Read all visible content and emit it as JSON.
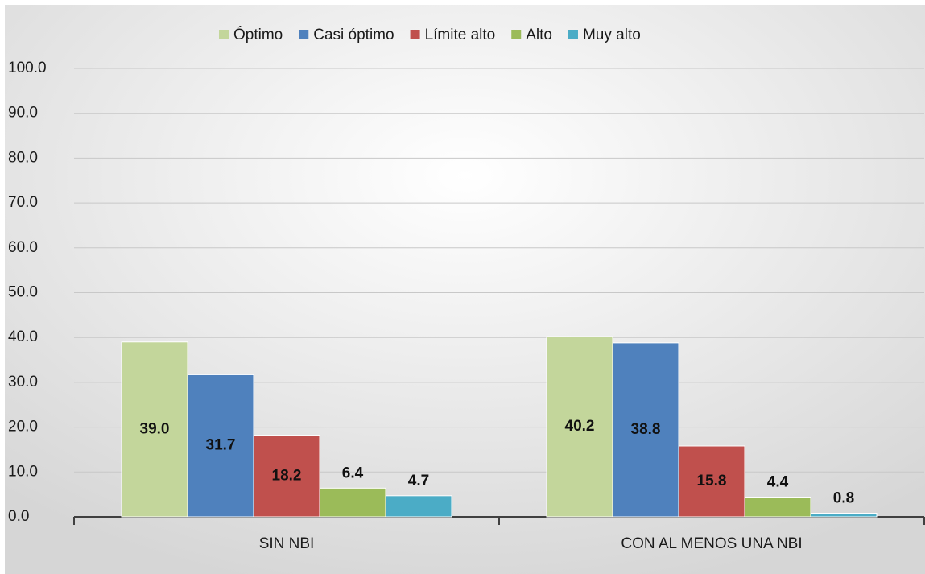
{
  "chart_data": {
    "type": "bar",
    "categories": [
      "SIN NBI",
      "CON AL MENOS UNA NBI"
    ],
    "series": [
      {
        "name": "Óptimo",
        "color": "#c3d69b",
        "values": [
          39.0,
          40.2
        ],
        "value_labels": [
          "39.0",
          "40.2"
        ]
      },
      {
        "name": "Casi óptimo",
        "color": "#4f81bd",
        "values": [
          31.7,
          38.8
        ]
      },
      {
        "name": "Límite alto",
        "color": "#c0504d",
        "values": [
          18.2,
          15.8
        ]
      },
      {
        "name": "Alto",
        "color": "#9bbb59",
        "values": [
          6.4,
          4.4
        ]
      },
      {
        "name": "Muy alto",
        "color": "#4bacc6",
        "values": [
          4.7,
          0.8
        ]
      }
    ],
    "ylim": [
      0,
      100
    ],
    "yticks": [
      {
        "value": 0,
        "label": "0.0"
      },
      {
        "value": 10,
        "label": "10.0"
      },
      {
        "value": 20,
        "label": "20.0"
      },
      {
        "value": 30,
        "label": "30.0"
      },
      {
        "value": 40,
        "label": "40.0"
      },
      {
        "value": 50,
        "label": "50.0"
      },
      {
        "value": 60,
        "label": "60.0"
      },
      {
        "value": 70,
        "label": "70.0"
      },
      {
        "value": 80,
        "label": "80.0"
      },
      {
        "value": 90,
        "label": "90.0"
      },
      {
        "value": 100,
        "label": "100.0"
      }
    ],
    "grid": true,
    "legend": "top"
  }
}
